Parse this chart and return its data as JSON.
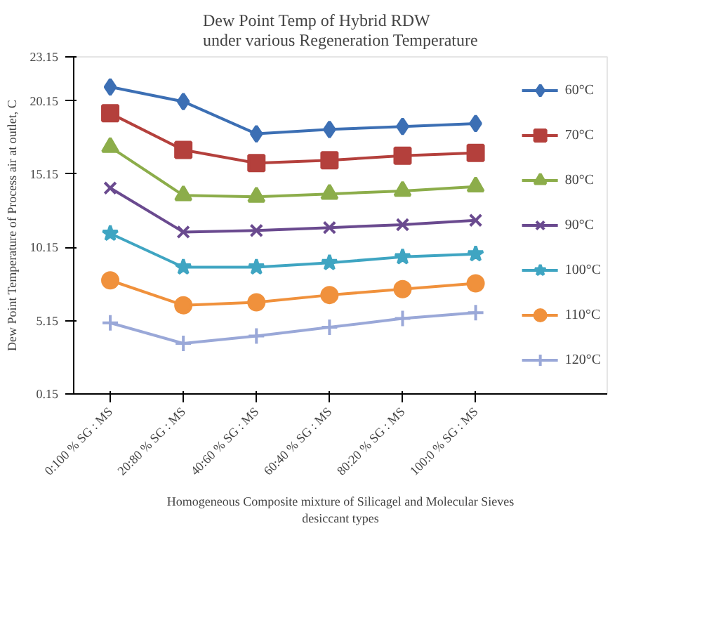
{
  "chart_data": {
    "type": "line",
    "title": "Dew Point Temp of Hybrid RDW under various Regeneration Temperature",
    "xlabel": "Homogeneous Composite mixture of Silicagel and Molecular Sieves desiccant types",
    "ylabel": "Dew Point Temperature of Process air at outlet, C",
    "categories": [
      "0:100 % SG : MS",
      "20:80 % SG : MS",
      "40:60 % SG : MS",
      "60:40 % SG : MS",
      "80:20 % SG : MS",
      "100:0 % SG : MS"
    ],
    "ylim": [
      0.15,
      23.15
    ],
    "yticks": [
      0.15,
      5.15,
      10.15,
      15.15,
      20.15,
      23.15
    ],
    "grid": false,
    "legend": "right",
    "series": [
      {
        "name": "60°C",
        "color": "#3c6fb4",
        "marker": "diamond",
        "values": [
          21.1,
          20.1,
          17.9,
          18.2,
          18.4,
          18.6
        ]
      },
      {
        "name": "70°C",
        "color": "#b4403c",
        "marker": "square",
        "values": [
          19.3,
          16.8,
          15.9,
          16.1,
          16.4,
          16.6
        ]
      },
      {
        "name": "80°C",
        "color": "#8cad4a",
        "marker": "triangle",
        "values": [
          17.0,
          13.7,
          13.6,
          13.8,
          14.0,
          14.3
        ]
      },
      {
        "name": "90°C",
        "color": "#6a4a8f",
        "marker": "cross",
        "values": [
          14.2,
          11.2,
          11.3,
          11.5,
          11.7,
          12.0
        ]
      },
      {
        "name": "100°C",
        "color": "#3fa5c2",
        "marker": "star",
        "values": [
          11.1,
          8.8,
          8.8,
          9.1,
          9.5,
          9.7
        ]
      },
      {
        "name": "110°C",
        "color": "#f0913c",
        "marker": "circle",
        "values": [
          7.9,
          6.2,
          6.4,
          6.9,
          7.3,
          7.7
        ]
      },
      {
        "name": "120°C",
        "color": "#9aa8d8",
        "marker": "plus",
        "values": [
          5.0,
          3.6,
          4.1,
          4.7,
          5.3,
          5.7
        ]
      }
    ]
  }
}
